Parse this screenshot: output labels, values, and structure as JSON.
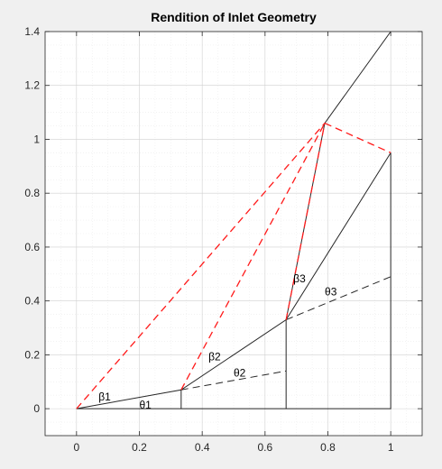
{
  "chart_data": {
    "type": "line",
    "title": "Rendition of Inlet Geometry",
    "xlabel": "",
    "ylabel": "",
    "xlim": [
      -0.1,
      1.1
    ],
    "ylim": [
      -0.1,
      1.4
    ],
    "xticks": [
      0,
      0.2,
      0.4,
      0.6,
      0.8,
      1
    ],
    "xtick_labels": [
      "0",
      "0.2",
      "0.4",
      "0.6",
      "0.8",
      "1"
    ],
    "yticks": [
      0,
      0.2,
      0.4,
      0.6,
      0.8,
      1,
      1.2,
      1.4
    ],
    "ytick_labels": [
      "0",
      "0.2",
      "0.4",
      "0.6",
      "0.8",
      "1",
      "1.2",
      "1.4"
    ],
    "grid": true,
    "minor_grid": true,
    "colors": {
      "black": "#262626",
      "red": "#ff1a1a",
      "axes_bg": "#ffffff",
      "figure_bg": "#f0f0f0",
      "grid": "#dcdcdc"
    },
    "series": [
      {
        "style": "solid",
        "color": "black",
        "x": [
          0,
          0.333,
          0.667,
          1
        ],
        "y": [
          0,
          0.07,
          0.33,
          0.95
        ]
      },
      {
        "style": "solid",
        "color": "black",
        "x": [
          0.667,
          0.79,
          1.0
        ],
        "y": [
          0.33,
          1.06,
          1.4
        ]
      },
      {
        "style": "solid",
        "color": "black",
        "x": [
          0,
          1,
          1
        ],
        "y": [
          0,
          0,
          0.95
        ]
      },
      {
        "style": "solid",
        "color": "black",
        "x": [
          0.333,
          0.333
        ],
        "y": [
          0,
          0.07
        ]
      },
      {
        "style": "solid",
        "color": "black",
        "x": [
          0.667,
          0.667
        ],
        "y": [
          0,
          0.33
        ]
      },
      {
        "style": "dashed",
        "color": "black",
        "x": [
          0.333,
          0.667
        ],
        "y": [
          0.07,
          0.14
        ]
      },
      {
        "style": "dashed",
        "color": "black",
        "x": [
          0.667,
          1
        ],
        "y": [
          0.33,
          0.49
        ]
      },
      {
        "style": "dashed",
        "color": "red",
        "x": [
          0,
          0.79
        ],
        "y": [
          0,
          1.06
        ]
      },
      {
        "style": "dashed",
        "color": "red",
        "x": [
          0.333,
          0.79
        ],
        "y": [
          0.07,
          1.06
        ]
      },
      {
        "style": "dashed",
        "color": "red",
        "x": [
          0.667,
          0.79
        ],
        "y": [
          0.33,
          1.06
        ]
      },
      {
        "style": "dashed",
        "color": "red",
        "x": [
          0.79,
          1
        ],
        "y": [
          1.06,
          0.95
        ]
      }
    ],
    "annotations": [
      {
        "text": "β1",
        "x": 0.07,
        "y": 0.03
      },
      {
        "text": "θ1",
        "x": 0.2,
        "y": 0.0
      },
      {
        "text": "β2",
        "x": 0.42,
        "y": 0.18
      },
      {
        "text": "θ2",
        "x": 0.5,
        "y": 0.12
      },
      {
        "text": "β3",
        "x": 0.69,
        "y": 0.47
      },
      {
        "text": "θ3",
        "x": 0.79,
        "y": 0.42
      }
    ]
  }
}
